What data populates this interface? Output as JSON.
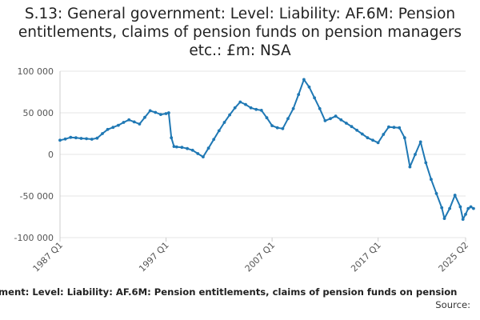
{
  "chart_title": "S.13: General government: Level: Liability: AF.6M: Pension entitlements, claims of pension funds on pension managers etc.: £m: NSA",
  "footer": {
    "caption": "ment: Level: Liability: AF.6M: Pension entitlements, claims of pension funds on pension",
    "source_label": "Source:"
  },
  "colors": {
    "line": "#1f78b4",
    "grid": "#e5e5e5",
    "axis": "#cccccc"
  },
  "chart_data": {
    "type": "line",
    "title": "S.13: General government: Level: Liability: AF.6M: Pension entitlements, claims of pension funds on pension managers etc.: £m: NSA",
    "xlabel": "",
    "ylabel": "",
    "x_range": [
      "1987 Q1",
      "2025 Q2"
    ],
    "ylim": [
      -100000,
      100000
    ],
    "y_ticks": [
      100000,
      50000,
      0,
      -50000,
      -100000
    ],
    "y_tick_labels": [
      "100 000",
      "50 000",
      "0",
      "-50 000",
      "-100 000"
    ],
    "x_tick_labels": [
      "1987 Q1",
      "1997 Q1",
      "2007 Q1",
      "2017 Q1",
      "2025 Q2"
    ],
    "grid": true,
    "series": [
      {
        "points": [
          [
            "1987 Q1",
            17000
          ],
          [
            "1987 Q3",
            18500
          ],
          [
            "1988 Q1",
            20500
          ],
          [
            "1988 Q3",
            20000
          ],
          [
            "1989 Q1",
            19200
          ],
          [
            "1989 Q3",
            18800
          ],
          [
            "1990 Q1",
            18300
          ],
          [
            "1990 Q3",
            19500
          ],
          [
            "1991 Q1",
            25000
          ],
          [
            "1991 Q3",
            30000
          ],
          [
            "1992 Q1",
            32500
          ],
          [
            "1992 Q3",
            35000
          ],
          [
            "1993 Q1",
            38500
          ],
          [
            "1993 Q3",
            41500
          ],
          [
            "1994 Q1",
            39000
          ],
          [
            "1994 Q3",
            36500
          ],
          [
            "1995 Q1",
            44500
          ],
          [
            "1995 Q3",
            52500
          ],
          [
            "1996 Q1",
            50500
          ],
          [
            "1996 Q3",
            48000
          ],
          [
            "1997 Q1",
            49000
          ],
          [
            "1997 Q2",
            50000
          ],
          [
            "1997 Q3",
            20000
          ],
          [
            "1997 Q4",
            9500
          ],
          [
            "1998 Q1",
            9000
          ],
          [
            "1998 Q3",
            8500
          ],
          [
            "1999 Q1",
            7000
          ],
          [
            "1999 Q3",
            5000
          ],
          [
            "2000 Q1",
            1000
          ],
          [
            "2000 Q3",
            -3000
          ],
          [
            "2001 Q1",
            7500
          ],
          [
            "2001 Q3",
            18000
          ],
          [
            "2002 Q1",
            28500
          ],
          [
            "2002 Q3",
            38500
          ],
          [
            "2003 Q1",
            47500
          ],
          [
            "2003 Q3",
            56000
          ],
          [
            "2004 Q1",
            63000
          ],
          [
            "2004 Q3",
            60000
          ],
          [
            "2005 Q1",
            56000
          ],
          [
            "2005 Q3",
            54000
          ],
          [
            "2006 Q1",
            53000
          ],
          [
            "2006 Q3",
            44000
          ],
          [
            "2007 Q1",
            34500
          ],
          [
            "2007 Q3",
            32000
          ],
          [
            "2008 Q1",
            31000
          ],
          [
            "2008 Q3",
            43000
          ],
          [
            "2009 Q1",
            55000
          ],
          [
            "2009 Q3",
            72000
          ],
          [
            "2010 Q1",
            90000
          ],
          [
            "2010 Q3",
            81000
          ],
          [
            "2011 Q1",
            68000
          ],
          [
            "2011 Q3",
            55000
          ],
          [
            "2012 Q1",
            40500
          ],
          [
            "2012 Q3",
            43000
          ],
          [
            "2013 Q1",
            46000
          ],
          [
            "2013 Q3",
            41500
          ],
          [
            "2014 Q1",
            37500
          ],
          [
            "2014 Q3",
            33500
          ],
          [
            "2015 Q1",
            29000
          ],
          [
            "2015 Q3",
            24500
          ],
          [
            "2016 Q1",
            20000
          ],
          [
            "2016 Q3",
            17000
          ],
          [
            "2017 Q1",
            14000
          ],
          [
            "2017 Q3",
            24000
          ],
          [
            "2018 Q1",
            33000
          ],
          [
            "2018 Q3",
            32500
          ],
          [
            "2019 Q1",
            32000
          ],
          [
            "2019 Q3",
            20000
          ],
          [
            "2020 Q1",
            -15000
          ],
          [
            "2020 Q3",
            0
          ],
          [
            "2021 Q1",
            15000
          ],
          [
            "2021 Q3",
            -10000
          ],
          [
            "2022 Q1",
            -30000
          ],
          [
            "2022 Q3",
            -47000
          ],
          [
            "2023 Q1",
            -64000
          ],
          [
            "2023 Q2",
            -77000
          ],
          [
            "2023 Q4",
            -65000
          ],
          [
            "2024 Q2",
            -49000
          ],
          [
            "2024 Q4",
            -63000
          ],
          [
            "2025 Q1",
            -78000
          ],
          [
            "2025 Q2",
            -72000
          ],
          [
            "2025 Q3",
            -65000
          ],
          [
            "2025 Q4",
            -63000
          ],
          [
            "2026 Q1",
            -65000
          ]
        ]
      }
    ]
  }
}
